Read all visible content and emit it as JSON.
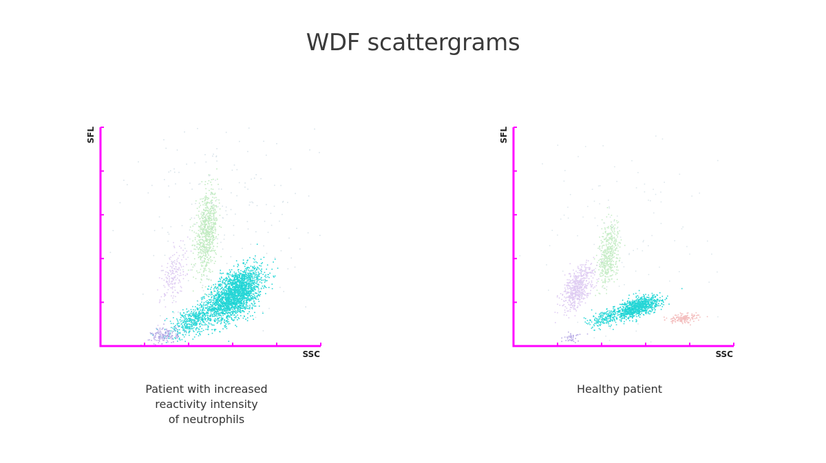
{
  "title": "WDF scattergrams",
  "colors": {
    "axis": "#ff00ff",
    "neutrophils": "#00cfcf",
    "lymphocytes": "#b8e8b8",
    "monocytes": "#d8c0f0",
    "eosinophils": "#f0a8a8",
    "debris": "#a898e0"
  },
  "chart_data": [
    {
      "type": "scatter",
      "xlabel": "SSC",
      "ylabel": "SFL",
      "x_ticks": 5,
      "y_ticks": 5,
      "caption_lines": [
        "Patient with increased",
        "reactivity intensity",
        "of neutrophils"
      ],
      "clusters": [
        {
          "population": "neutrophils",
          "cx": 0.61,
          "cy": 0.24,
          "sx": 0.06,
          "sy": 0.06,
          "rho": 0.5,
          "n": 2200,
          "color": "#00cfcf",
          "opacity": 0.85
        },
        {
          "population": "neutrophils-tail",
          "cx": 0.42,
          "cy": 0.12,
          "sx": 0.06,
          "sy": 0.04,
          "rho": 0.6,
          "n": 500,
          "color": "#00cfcf",
          "opacity": 0.8
        },
        {
          "population": "lymphocytes",
          "cx": 0.48,
          "cy": 0.52,
          "sx": 0.025,
          "sy": 0.09,
          "rho": 0.3,
          "n": 700,
          "color": "#b8e8b8",
          "opacity": 0.85
        },
        {
          "population": "monocytes",
          "cx": 0.33,
          "cy": 0.33,
          "sx": 0.03,
          "sy": 0.07,
          "rho": 0.5,
          "n": 180,
          "color": "#d8c0f0",
          "opacity": 0.8
        },
        {
          "population": "debris",
          "cx": 0.29,
          "cy": 0.05,
          "sx": 0.03,
          "sy": 0.02,
          "rho": 0.2,
          "n": 150,
          "color": "#a898e0",
          "opacity": 0.8
        },
        {
          "population": "scatter",
          "cx": 0.55,
          "cy": 0.55,
          "sx": 0.22,
          "sy": 0.25,
          "rho": 0.0,
          "n": 220,
          "color": "#c8d8e0",
          "opacity": 0.7
        }
      ]
    },
    {
      "type": "scatter",
      "xlabel": "SSC",
      "ylabel": "SFL",
      "x_ticks": 5,
      "y_ticks": 5,
      "caption_lines": [
        "Healthy patient"
      ],
      "clusters": [
        {
          "population": "neutrophils",
          "cx": 0.56,
          "cy": 0.18,
          "sx": 0.05,
          "sy": 0.025,
          "rho": 0.55,
          "n": 900,
          "color": "#00cfcf",
          "opacity": 0.85
        },
        {
          "population": "neutrophils-tail",
          "cx": 0.42,
          "cy": 0.13,
          "sx": 0.04,
          "sy": 0.02,
          "rho": 0.4,
          "n": 220,
          "color": "#00cfcf",
          "opacity": 0.8
        },
        {
          "population": "lymphocytes",
          "cx": 0.43,
          "cy": 0.42,
          "sx": 0.025,
          "sy": 0.07,
          "rho": 0.3,
          "n": 450,
          "color": "#b8e8b8",
          "opacity": 0.8
        },
        {
          "population": "monocytes",
          "cx": 0.29,
          "cy": 0.27,
          "sx": 0.035,
          "sy": 0.05,
          "rho": 0.5,
          "n": 550,
          "color": "#d8c0f0",
          "opacity": 0.8
        },
        {
          "population": "eosinophils",
          "cx": 0.77,
          "cy": 0.13,
          "sx": 0.035,
          "sy": 0.012,
          "rho": 0.3,
          "n": 140,
          "color": "#f0a8a8",
          "opacity": 0.75
        },
        {
          "population": "debris",
          "cx": 0.26,
          "cy": 0.04,
          "sx": 0.02,
          "sy": 0.012,
          "rho": 0.2,
          "n": 40,
          "color": "#a898e0",
          "opacity": 0.8
        },
        {
          "population": "scatter",
          "cx": 0.5,
          "cy": 0.5,
          "sx": 0.2,
          "sy": 0.25,
          "rho": 0.0,
          "n": 120,
          "color": "#c8d8e0",
          "opacity": 0.6
        }
      ]
    }
  ]
}
